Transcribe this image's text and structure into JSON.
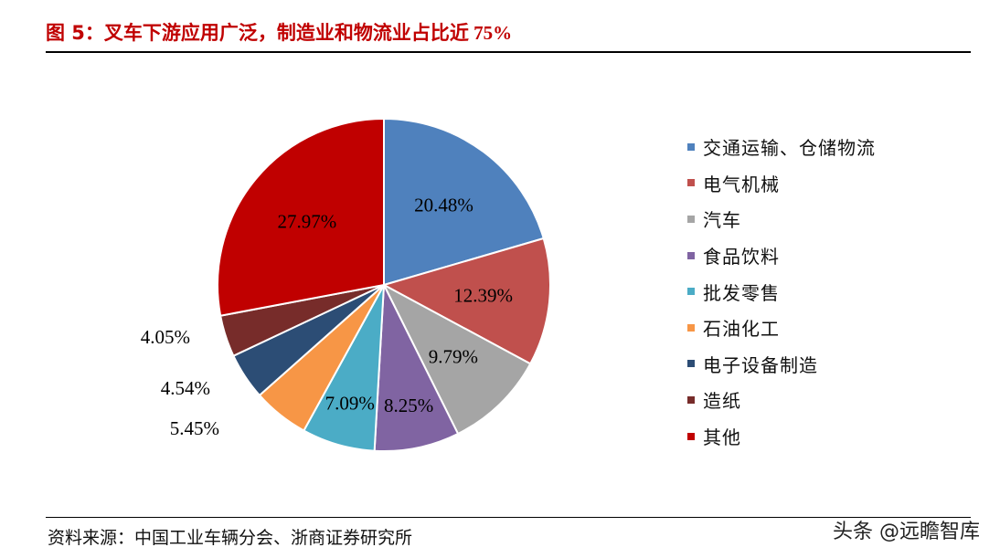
{
  "title": {
    "prefix": "图 5：叉车下游应用广泛，制造业和物流业占比近",
    "number": " 75%"
  },
  "source": "资料来源：中国工业车辆分会、浙商证券研究所",
  "watermark": "头条 @远瞻智库",
  "chart_data": {
    "type": "pie",
    "start_angle_deg": 0,
    "direction": "clockwise",
    "legend_position": "right",
    "slices": [
      {
        "name": "交通运输、仓储物流",
        "value": 20.48,
        "label": "20.48%",
        "color": "#4f81bd",
        "label_color": "#000000",
        "label_outside": false
      },
      {
        "name": "电气机械",
        "value": 12.39,
        "label": "12.39%",
        "color": "#c0504d",
        "label_color": "#000000",
        "label_outside": false
      },
      {
        "name": "汽车",
        "value": 9.79,
        "label": "9.79%",
        "color": "#a5a5a5",
        "label_color": "#000000",
        "label_outside": false
      },
      {
        "name": "食品饮料",
        "value": 8.25,
        "label": "8.25%",
        "color": "#8064a2",
        "label_color": "#000000",
        "label_outside": false
      },
      {
        "name": "批发零售",
        "value": 7.09,
        "label": "7.09%",
        "color": "#4bacc6",
        "label_color": "#000000",
        "label_outside": false
      },
      {
        "name": "石油化工",
        "value": 5.45,
        "label": "5.45%",
        "color": "#f79646",
        "label_color": "#000000",
        "label_outside": true
      },
      {
        "name": "电子设备制造",
        "value": 4.54,
        "label": "4.54%",
        "color": "#2c4d75",
        "label_color": "#000000",
        "label_outside": true
      },
      {
        "name": "造纸",
        "value": 4.05,
        "label": "4.05%",
        "color": "#772c2a",
        "label_color": "#000000",
        "label_outside": true
      },
      {
        "name": "其他",
        "value": 27.97,
        "label": "27.97%",
        "color": "#c00000",
        "label_color": "#000000",
        "label_outside": false
      }
    ]
  }
}
